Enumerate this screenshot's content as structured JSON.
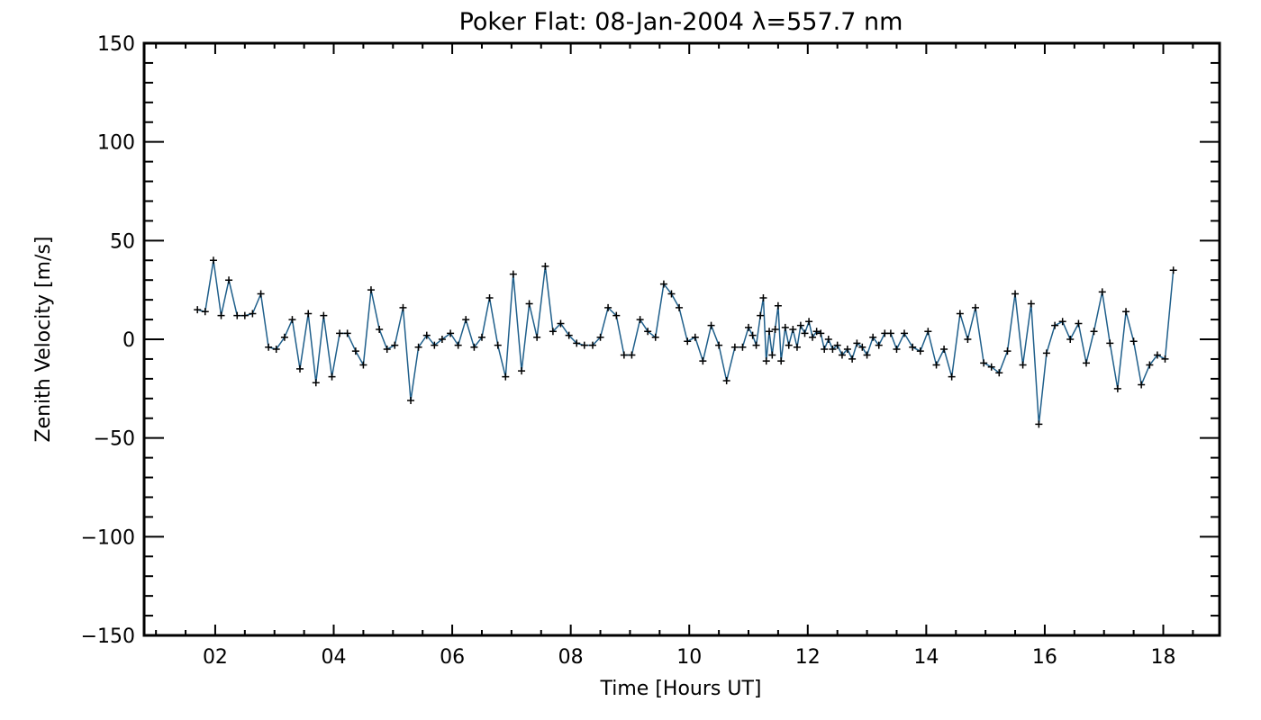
{
  "chart_data": {
    "type": "line",
    "title": "Poker Flat: 08-Jan-2004 λ=557.7 nm",
    "xlabel": "Time [Hours UT]",
    "ylabel": "Zenith Velocity [m/s]",
    "xlim": [
      0.8,
      18.95
    ],
    "ylim": [
      -150,
      150
    ],
    "x_ticks": [
      2,
      4,
      6,
      8,
      10,
      12,
      14,
      16,
      18
    ],
    "x_tick_labels": [
      "02",
      "04",
      "06",
      "08",
      "10",
      "12",
      "14",
      "16",
      "18"
    ],
    "y_ticks": [
      -150,
      -100,
      -50,
      0,
      50,
      100,
      150
    ],
    "y_tick_labels": [
      "−150",
      "−100",
      "−50",
      "0",
      "50",
      "100",
      "150"
    ],
    "grid": false,
    "line_color": "#1f5f8b",
    "marker": "+",
    "series": [
      {
        "x": [
          1.7,
          1.83,
          1.97,
          2.1,
          2.23,
          2.37,
          2.5,
          2.63,
          2.77,
          2.9,
          3.03,
          3.17,
          3.3,
          3.43,
          3.57,
          3.7,
          3.83,
          3.97,
          4.1,
          4.23,
          4.37,
          4.5,
          4.63,
          4.77,
          4.9,
          5.03,
          5.17,
          5.3,
          5.43,
          5.57,
          5.7,
          5.83,
          5.97,
          6.1,
          6.23,
          6.37,
          6.5,
          6.63,
          6.77,
          6.9,
          7.03,
          7.17,
          7.3,
          7.43,
          7.57,
          7.7,
          7.83,
          7.97,
          8.1,
          8.23,
          8.37,
          8.5,
          8.63,
          8.77,
          8.9,
          9.03,
          9.17,
          9.3,
          9.43,
          9.57,
          9.7,
          9.83,
          9.97,
          10.1,
          10.23,
          10.37,
          10.5,
          10.63,
          10.77,
          10.9,
          11.0,
          11.07,
          11.13,
          11.2,
          11.25,
          11.3,
          11.35,
          11.4,
          11.45,
          11.5,
          11.55,
          11.62,
          11.68,
          11.75,
          11.82,
          11.88,
          11.95,
          12.02,
          12.08,
          12.15,
          12.22,
          12.28,
          12.35,
          12.42,
          12.5,
          12.58,
          12.67,
          12.75,
          12.83,
          12.92,
          13.0,
          13.1,
          13.2,
          13.3,
          13.4,
          13.5,
          13.63,
          13.77,
          13.9,
          14.03,
          14.17,
          14.3,
          14.43,
          14.57,
          14.7,
          14.83,
          14.97,
          15.1,
          15.23,
          15.37,
          15.5,
          15.63,
          15.77,
          15.9,
          16.03,
          16.17,
          16.3,
          16.43,
          16.57,
          16.7,
          16.83,
          16.97,
          17.1,
          17.23,
          17.37,
          17.5,
          17.63,
          17.77,
          17.9,
          18.03,
          18.17
        ],
        "y": [
          15,
          14,
          40,
          12,
          30,
          12,
          12,
          13,
          23,
          -4,
          -5,
          1,
          10,
          -15,
          13,
          -22,
          12,
          -19,
          3,
          3,
          -6,
          -13,
          25,
          5,
          -5,
          -3,
          16,
          -31,
          -4,
          2,
          -3,
          0,
          3,
          -3,
          10,
          -4,
          1,
          21,
          -3,
          -19,
          33,
          -16,
          18,
          1,
          37,
          4,
          8,
          2,
          -2,
          -3,
          -3,
          1,
          16,
          12,
          -8,
          -8,
          10,
          4,
          1,
          28,
          23,
          16,
          -1,
          1,
          -11,
          7,
          -3,
          -21,
          -4,
          -4,
          6,
          2,
          -3,
          12,
          21,
          -11,
          4,
          -8,
          5,
          17,
          -11,
          6,
          -3,
          5,
          -4,
          7,
          3,
          9,
          1,
          4,
          3,
          -5,
          0,
          -5,
          -3,
          -8,
          -5,
          -10,
          -2,
          -4,
          -8,
          1,
          -3,
          3,
          3,
          -5,
          3,
          -4,
          -6,
          4,
          -13,
          -5,
          -19,
          13,
          0,
          16,
          -12,
          -14,
          -17,
          -6,
          23,
          -13,
          18,
          -43,
          -7,
          7,
          9,
          0,
          8,
          -12,
          4,
          24,
          -2,
          -25,
          14,
          -1,
          -23,
          -13,
          -8,
          -10,
          35
        ]
      }
    ]
  }
}
